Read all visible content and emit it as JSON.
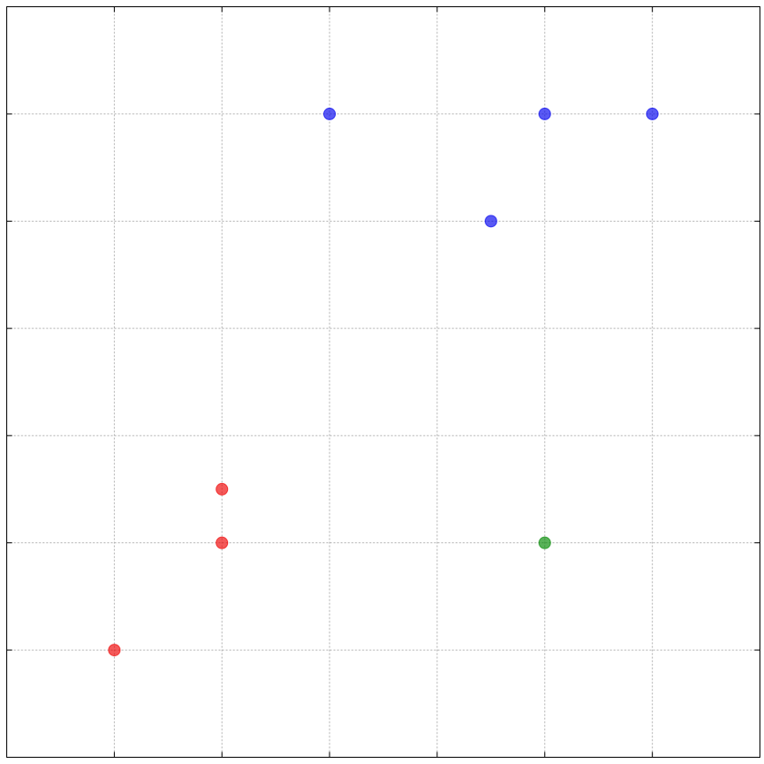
{
  "chart_data": {
    "type": "scatter",
    "title": "",
    "xlabel": "",
    "ylabel": "",
    "xlim": [
      0,
      7
    ],
    "ylim": [
      0,
      7
    ],
    "xticks": [
      1,
      2,
      3,
      4,
      5,
      6
    ],
    "yticks": [
      1,
      2,
      3,
      4,
      5,
      6
    ],
    "grid": true,
    "series": [
      {
        "name": "blue",
        "color": "#0000ee",
        "points": [
          {
            "x": 3,
            "y": 6
          },
          {
            "x": 5,
            "y": 6
          },
          {
            "x": 6,
            "y": 6
          },
          {
            "x": 4.5,
            "y": 5
          }
        ]
      },
      {
        "name": "red",
        "color": "#ee0000",
        "points": [
          {
            "x": 2,
            "y": 2.5
          },
          {
            "x": 2,
            "y": 2
          },
          {
            "x": 1,
            "y": 1
          }
        ]
      },
      {
        "name": "green",
        "color": "#008800",
        "points": [
          {
            "x": 5,
            "y": 2
          }
        ]
      }
    ]
  }
}
